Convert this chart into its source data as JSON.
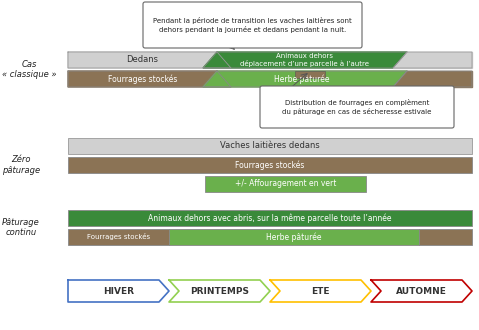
{
  "background_color": "#ffffff",
  "colors": {
    "gray_light": "#d0d0d0",
    "green_dark": "#3a8a3a",
    "green_light": "#6ab04c",
    "brown": "#8b7355",
    "white": "#ffffff"
  },
  "seasons": [
    {
      "label": "HIVER",
      "color": "#4472c4"
    },
    {
      "label": "PRINTEMPS",
      "color": "#92d050"
    },
    {
      "label": "ETE",
      "color": "#ffc000"
    },
    {
      "label": "AUTOMNE",
      "color": "#c00000"
    }
  ],
  "callout_top_text": "Pendant la période de transition les vaches laitières sont\ndehors pendant la journée et dedans pendant la nuit.",
  "callout_bot_text": "Distribution de fourrages en complèment\ndu pâturage en cas de sécheresse estivale",
  "label_cas": "Cas\n« classique »",
  "label_zero": "Zéro\npâturage",
  "label_paturage": "Pâturage\ncontinu",
  "text_dedans": "Dedans",
  "text_animaux_dehors": "Animaux dehors\ndéplacement d’une parcelle à l’autre",
  "text_fourrages": "Fourrages stockés",
  "text_herbe": "Herbe pâturée",
  "text_vaches": "Vaches laitières dedans",
  "text_affouragement": "+/- Affouragement en vert",
  "text_animaux_continu": "Animaux dehors avec abris, sur la même parcelle toute l’année"
}
